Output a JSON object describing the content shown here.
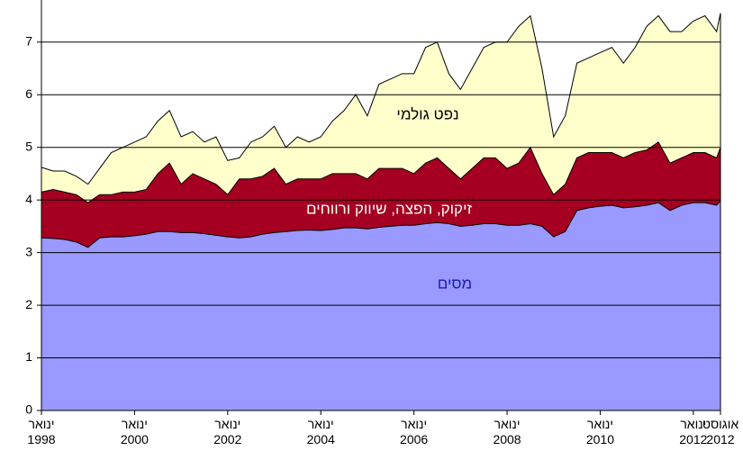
{
  "chart_data": {
    "type": "stacked_area",
    "x": [
      "1998-01",
      "1998-04",
      "1998-07",
      "1998-10",
      "1999-01",
      "1999-04",
      "1999-07",
      "1999-10",
      "2000-01",
      "2000-04",
      "2000-07",
      "2000-10",
      "2001-01",
      "2001-04",
      "2001-07",
      "2001-10",
      "2002-01",
      "2002-04",
      "2002-07",
      "2002-10",
      "2003-01",
      "2003-04",
      "2003-07",
      "2003-10",
      "2004-01",
      "2004-04",
      "2004-07",
      "2004-10",
      "2005-01",
      "2005-04",
      "2005-07",
      "2005-10",
      "2006-01",
      "2006-04",
      "2006-07",
      "2006-10",
      "2007-01",
      "2007-04",
      "2007-07",
      "2007-10",
      "2008-01",
      "2008-04",
      "2008-07",
      "2008-10",
      "2009-01",
      "2009-04",
      "2009-07",
      "2009-10",
      "2010-01",
      "2010-04",
      "2010-07",
      "2010-10",
      "2011-01",
      "2011-04",
      "2011-07",
      "2011-10",
      "2012-01",
      "2012-04",
      "2012-07",
      "2012-08"
    ],
    "series": [
      {
        "name": "מסים",
        "color": "#9999ff",
        "label_color": "#1a1ab0",
        "values": [
          3.28,
          3.27,
          3.25,
          3.2,
          3.1,
          3.28,
          3.3,
          3.3,
          3.32,
          3.35,
          3.4,
          3.4,
          3.38,
          3.38,
          3.36,
          3.33,
          3.3,
          3.28,
          3.3,
          3.35,
          3.38,
          3.4,
          3.42,
          3.43,
          3.42,
          3.44,
          3.47,
          3.47,
          3.45,
          3.48,
          3.5,
          3.52,
          3.52,
          3.55,
          3.57,
          3.55,
          3.5,
          3.52,
          3.55,
          3.55,
          3.52,
          3.52,
          3.55,
          3.5,
          3.3,
          3.4,
          3.8,
          3.85,
          3.88,
          3.9,
          3.85,
          3.87,
          3.9,
          3.95,
          3.8,
          3.9,
          3.95,
          3.95,
          3.9,
          3.98
        ]
      },
      {
        "name": "זיקוק, הפצה, שיווק ורווחים",
        "color": "#a50021",
        "label_color": "#ffffff",
        "values": [
          0.87,
          0.93,
          0.9,
          0.9,
          0.85,
          0.82,
          0.8,
          0.85,
          0.83,
          0.85,
          1.1,
          1.3,
          0.92,
          1.12,
          1.04,
          0.97,
          0.8,
          1.12,
          1.1,
          1.1,
          1.22,
          0.9,
          0.98,
          0.97,
          0.98,
          1.06,
          1.03,
          1.03,
          0.95,
          1.12,
          1.1,
          1.08,
          0.98,
          1.15,
          1.23,
          1.05,
          0.9,
          1.08,
          1.25,
          1.25,
          1.08,
          1.18,
          1.45,
          1.0,
          0.8,
          0.9,
          1.0,
          1.05,
          1.02,
          1.0,
          0.95,
          1.03,
          1.05,
          1.15,
          0.9,
          0.9,
          0.95,
          0.95,
          0.9,
          1.02
        ]
      },
      {
        "name": "נפט גולמי",
        "color": "#ffffcc",
        "label_color": "#000000",
        "values": [
          0.47,
          0.35,
          0.4,
          0.35,
          0.35,
          0.5,
          0.8,
          0.85,
          0.95,
          1.0,
          1.0,
          1.0,
          0.9,
          0.8,
          0.7,
          0.9,
          0.65,
          0.4,
          0.7,
          0.75,
          0.8,
          0.7,
          0.8,
          0.7,
          0.8,
          1.0,
          1.2,
          1.5,
          1.2,
          1.6,
          1.7,
          1.8,
          1.9,
          2.2,
          2.2,
          1.8,
          1.7,
          1.9,
          2.1,
          2.2,
          2.4,
          2.6,
          2.5,
          2.0,
          1.1,
          1.3,
          1.8,
          1.8,
          1.9,
          2.0,
          1.8,
          2.0,
          2.35,
          2.4,
          2.5,
          2.4,
          2.5,
          2.6,
          2.4,
          2.55
        ]
      }
    ],
    "ylim": [
      0,
      7.8
    ],
    "yticks": [
      0,
      1,
      2,
      3,
      4,
      5,
      6,
      7
    ],
    "grid": true,
    "xlim": [
      "1998-01",
      "2012-08"
    ],
    "xticks": [
      {
        "value": "1998-01",
        "label": "ינואר 1998"
      },
      {
        "value": "2000-01",
        "label": "ינואר 2000"
      },
      {
        "value": "2002-01",
        "label": "ינואר 2002"
      },
      {
        "value": "2004-01",
        "label": "ינואר 2004"
      },
      {
        "value": "2006-01",
        "label": "ינואר 2006"
      },
      {
        "value": "2008-01",
        "label": "ינואר 2008"
      },
      {
        "value": "2010-01",
        "label": "ינואר 2010"
      },
      {
        "value": "2012-01",
        "label": "ינואר 2012"
      },
      {
        "value": "2012-08",
        "label": "אוגוסט 2012"
      }
    ]
  }
}
